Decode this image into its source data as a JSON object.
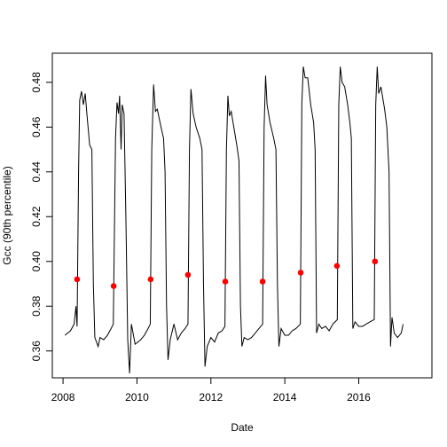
{
  "chart_data": {
    "type": "line",
    "x_label": "Date",
    "y_label": "Gcc (90th percentile)",
    "xlim": [
      2007.71,
      2017.98
    ],
    "ylim": [
      0.348,
      0.493
    ],
    "xticks": [
      2008,
      2010,
      2012,
      2014,
      2016
    ],
    "yticks": [
      0.36,
      0.38,
      {
        "value": 0.4,
        "label": "0.40"
      },
      0.42,
      0.44,
      0.46,
      0.48
    ],
    "series": [
      {
        "type": "line",
        "color": "#000000",
        "x": [
          2008.05,
          2008.2,
          2008.3,
          2008.35,
          2008.38,
          2008.42,
          2008.45,
          2008.5,
          2008.55,
          2008.6,
          2008.65,
          2008.72,
          2008.78,
          2008.82,
          2008.86,
          2008.95,
          2009.0,
          2009.1,
          2009.2,
          2009.3,
          2009.36,
          2009.42,
          2009.46,
          2009.5,
          2009.53,
          2009.57,
          2009.6,
          2009.65,
          2009.7,
          2009.75,
          2009.8,
          2009.85,
          2009.95,
          2010.1,
          2010.2,
          2010.3,
          2010.36,
          2010.4,
          2010.45,
          2010.5,
          2010.55,
          2010.65,
          2010.72,
          2010.76,
          2010.8,
          2010.84,
          2010.9,
          2011.0,
          2011.1,
          2011.2,
          2011.3,
          2011.38,
          2011.42,
          2011.46,
          2011.52,
          2011.6,
          2011.7,
          2011.76,
          2011.8,
          2011.84,
          2011.9,
          2012.0,
          2012.1,
          2012.2,
          2012.3,
          2012.38,
          2012.42,
          2012.46,
          2012.5,
          2012.55,
          2012.62,
          2012.7,
          2012.76,
          2012.8,
          2012.84,
          2012.9,
          2013.0,
          2013.1,
          2013.2,
          2013.3,
          2013.4,
          2013.44,
          2013.48,
          2013.52,
          2013.6,
          2013.7,
          2013.76,
          2013.8,
          2013.84,
          2013.9,
          2014.0,
          2014.1,
          2014.2,
          2014.3,
          2014.42,
          2014.46,
          2014.5,
          2014.55,
          2014.62,
          2014.7,
          2014.78,
          2014.82,
          2014.86,
          2014.92,
          2015.0,
          2015.1,
          2015.2,
          2015.3,
          2015.42,
          2015.46,
          2015.5,
          2015.55,
          2015.62,
          2015.7,
          2015.76,
          2015.8,
          2015.84,
          2015.9,
          2016.0,
          2016.1,
          2016.2,
          2016.3,
          2016.42,
          2016.46,
          2016.5,
          2016.54,
          2016.6,
          2016.7,
          2016.76,
          2016.82,
          2016.86,
          2016.9,
          2016.96,
          2017.05,
          2017.15,
          2017.2
        ],
        "values": [
          0.367,
          0.369,
          0.372,
          0.38,
          0.371,
          0.44,
          0.472,
          0.476,
          0.47,
          0.475,
          0.465,
          0.452,
          0.45,
          0.39,
          0.366,
          0.362,
          0.366,
          0.365,
          0.367,
          0.37,
          0.372,
          0.455,
          0.471,
          0.466,
          0.474,
          0.45,
          0.47,
          0.466,
          0.42,
          0.365,
          0.35,
          0.372,
          0.363,
          0.365,
          0.367,
          0.37,
          0.372,
          0.45,
          0.479,
          0.467,
          0.468,
          0.46,
          0.455,
          0.44,
          0.38,
          0.356,
          0.365,
          0.372,
          0.365,
          0.368,
          0.37,
          0.372,
          0.45,
          0.477,
          0.466,
          0.46,
          0.455,
          0.45,
          0.39,
          0.353,
          0.362,
          0.366,
          0.364,
          0.368,
          0.369,
          0.371,
          0.45,
          0.474,
          0.465,
          0.467,
          0.46,
          0.452,
          0.445,
          0.38,
          0.362,
          0.366,
          0.365,
          0.366,
          0.368,
          0.37,
          0.372,
          0.46,
          0.483,
          0.47,
          0.462,
          0.455,
          0.45,
          0.39,
          0.362,
          0.37,
          0.367,
          0.367,
          0.369,
          0.37,
          0.372,
          0.47,
          0.487,
          0.482,
          0.482,
          0.47,
          0.462,
          0.45,
          0.368,
          0.372,
          0.37,
          0.371,
          0.369,
          0.372,
          0.374,
          0.47,
          0.487,
          0.48,
          0.478,
          0.47,
          0.462,
          0.455,
          0.37,
          0.373,
          0.371,
          0.371,
          0.372,
          0.373,
          0.374,
          0.47,
          0.487,
          0.475,
          0.478,
          0.468,
          0.46,
          0.44,
          0.362,
          0.375,
          0.368,
          0.366,
          0.368,
          0.372
        ]
      },
      {
        "type": "scatter",
        "color": "#ff0000",
        "x": [
          2008.38,
          2009.37,
          2010.37,
          2011.38,
          2012.39,
          2013.4,
          2014.43,
          2015.41,
          2016.44
        ],
        "values": [
          0.392,
          0.389,
          0.392,
          0.394,
          0.391,
          0.391,
          0.395,
          0.398,
          0.4
        ]
      }
    ]
  }
}
